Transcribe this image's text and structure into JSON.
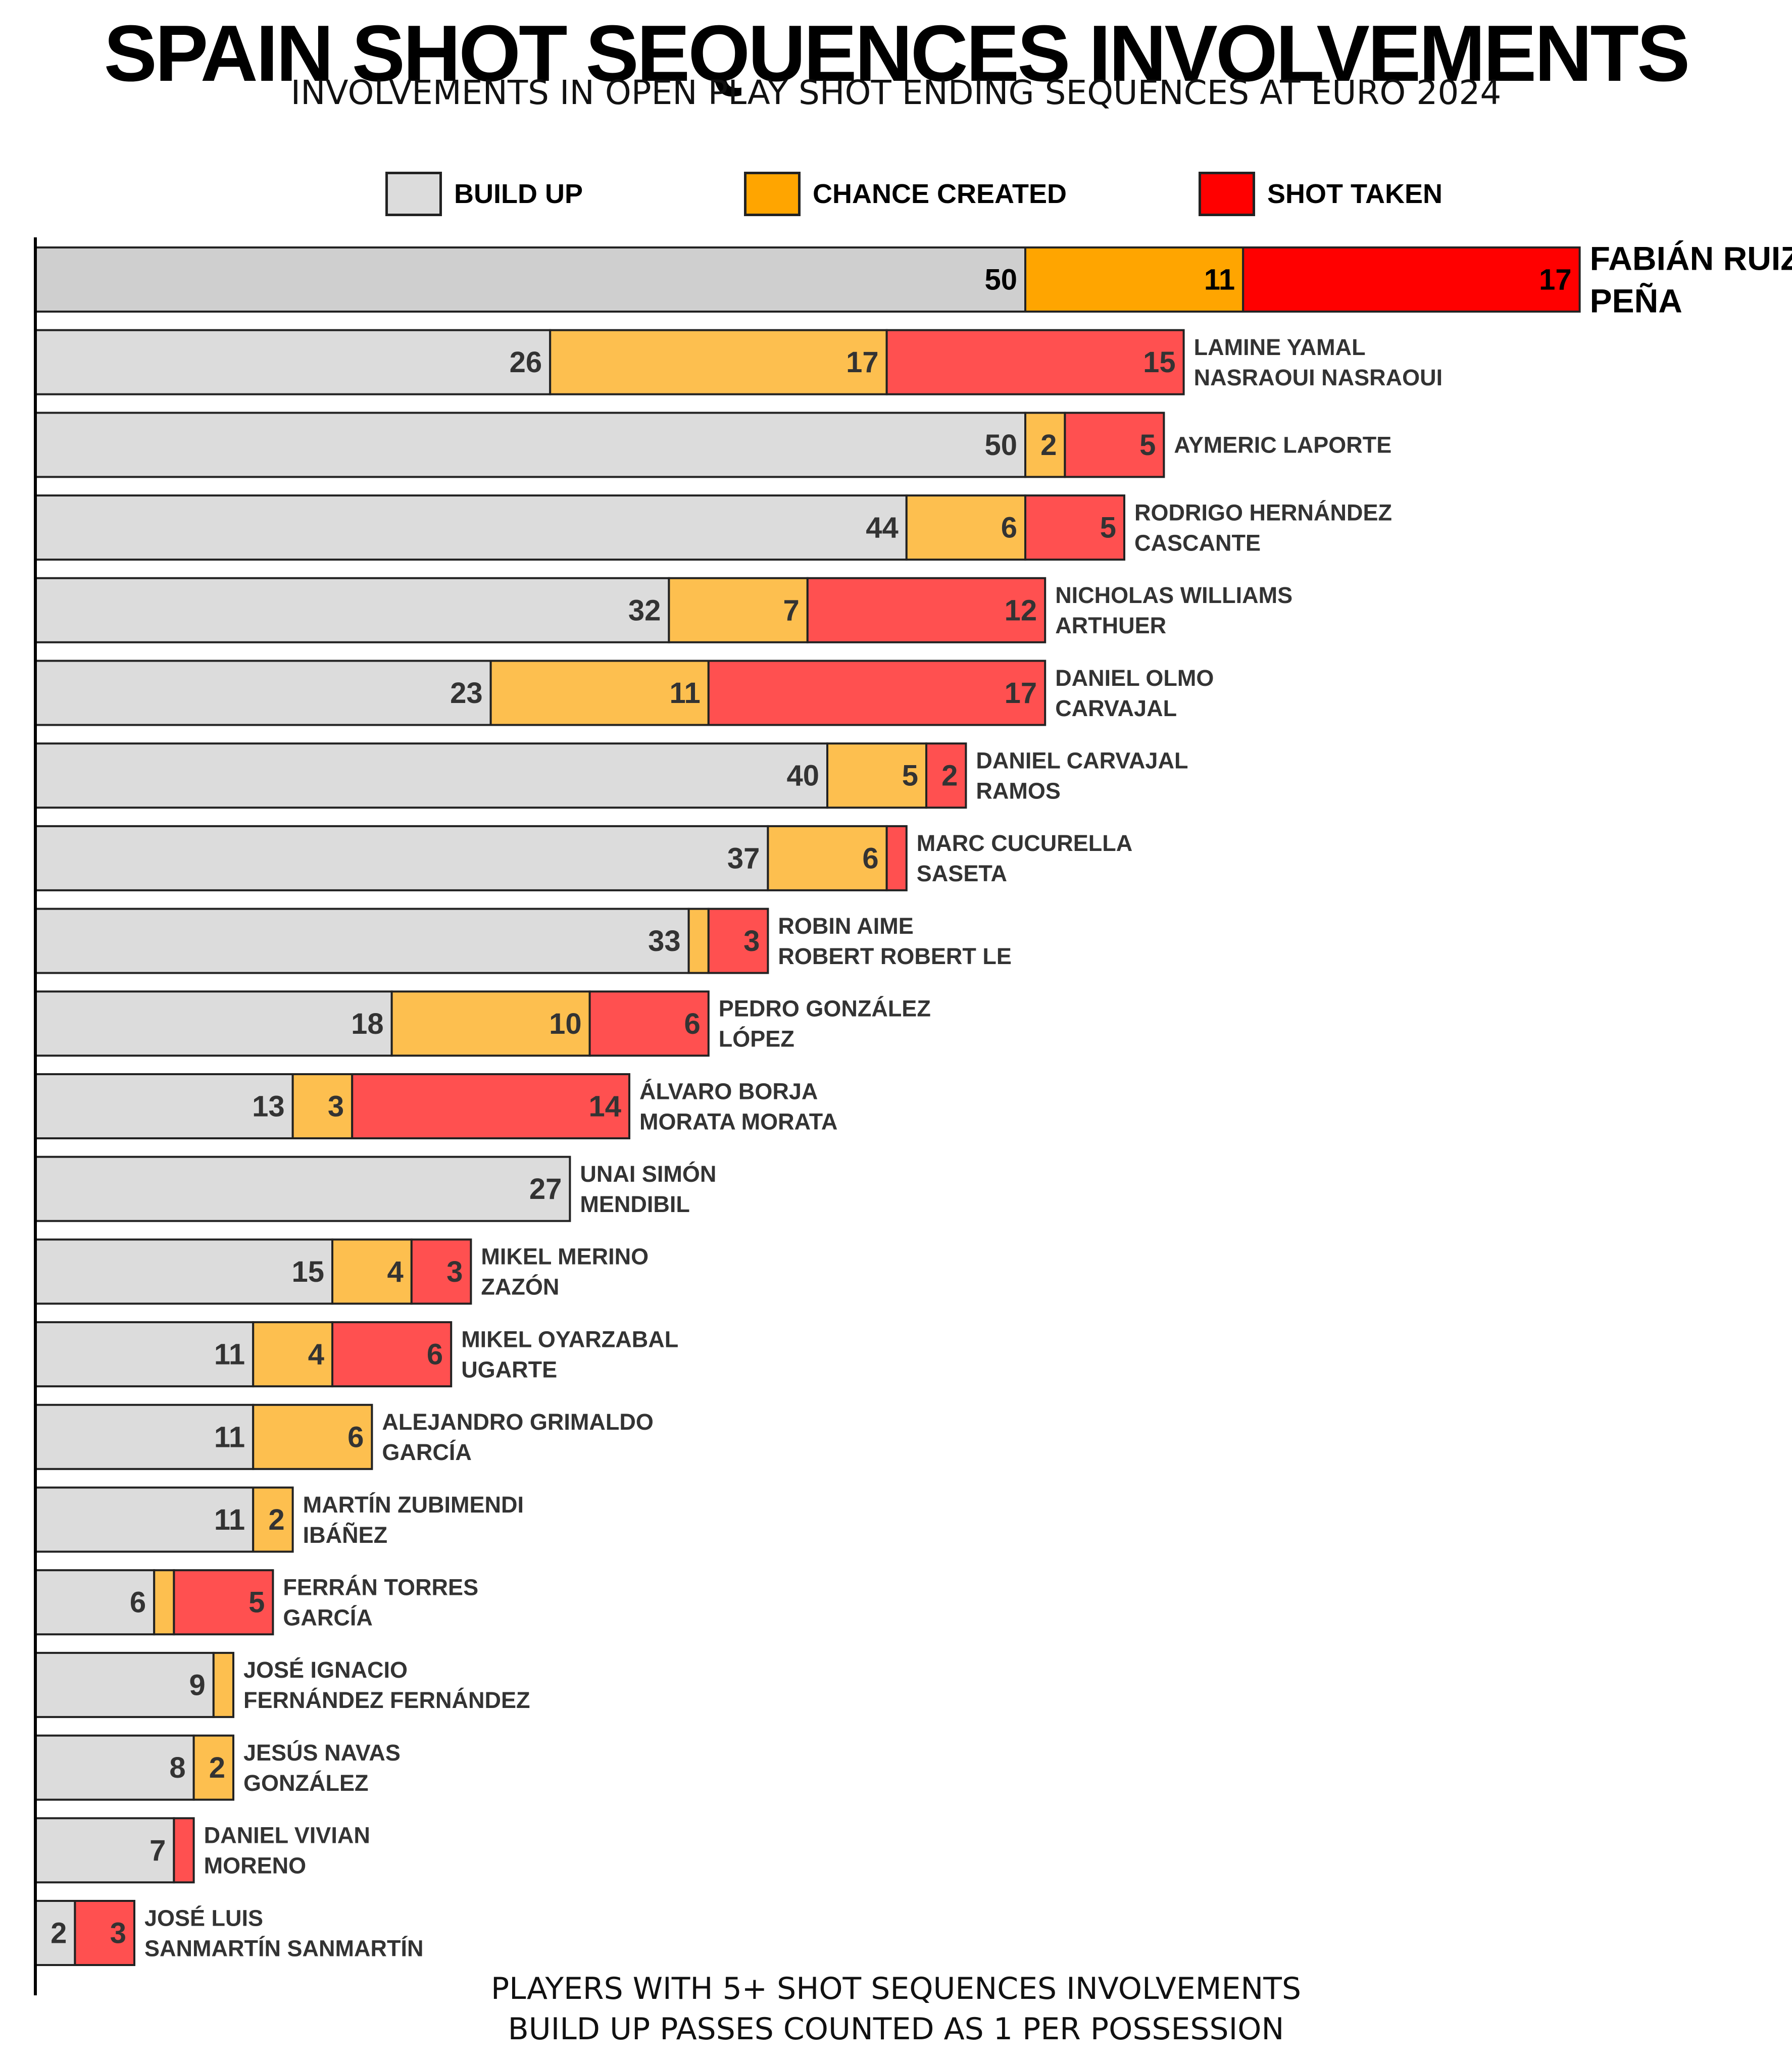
{
  "chart_data": {
    "type": "bar",
    "orientation": "horizontal",
    "stacked": true,
    "title": "SPAIN SHOT SEQUENCES INVOLVEMENTS",
    "subtitle": "INVOLVEMENTS IN OPEN PLAY SHOT ENDING SEQUENCES AT EURO 2024",
    "legend_position": "top",
    "grid": false,
    "xlim": [
      0,
      78
    ],
    "series": [
      {
        "name": "BUILD UP",
        "color": "#dcdcdc",
        "highlight_color": "#cfcfcf"
      },
      {
        "name": "CHANCE CREATED",
        "color": "#fdbf4f",
        "highlight_color": "#ffa500"
      },
      {
        "name": "SHOT TAKEN",
        "color": "#ff5050",
        "highlight_color": "#ff0000"
      }
    ],
    "rows": [
      {
        "name_line1": "FABIÁN RUIZ",
        "name_line2": "PEÑA",
        "values": [
          50,
          11,
          17
        ],
        "labels": [
          "50",
          "11",
          "17"
        ],
        "highlight": true
      },
      {
        "name_line1": "LAMINE YAMAL",
        "name_line2": "NASRAOUI NASRAOUI",
        "values": [
          26,
          17,
          15
        ],
        "labels": [
          "26",
          "17",
          "15"
        ]
      },
      {
        "name_line1": "AYMERIC LAPORTE",
        "name_line2": "",
        "values": [
          50,
          2,
          5
        ],
        "labels": [
          "50",
          "2",
          "5"
        ]
      },
      {
        "name_line1": "RODRIGO HERNÁNDEZ",
        "name_line2": "CASCANTE",
        "values": [
          44,
          6,
          5
        ],
        "labels": [
          "44",
          "6",
          "5"
        ]
      },
      {
        "name_line1": "NICHOLAS WILLIAMS",
        "name_line2": "ARTHUER",
        "values": [
          32,
          7,
          12
        ],
        "labels": [
          "32",
          "7",
          "12"
        ]
      },
      {
        "name_line1": "DANIEL OLMO",
        "name_line2": "CARVAJAL",
        "values": [
          23,
          11,
          17
        ],
        "labels": [
          "23",
          "11",
          "17"
        ]
      },
      {
        "name_line1": "DANIEL CARVAJAL",
        "name_line2": "RAMOS",
        "values": [
          40,
          5,
          2
        ],
        "labels": [
          "40",
          "5",
          "2"
        ]
      },
      {
        "name_line1": "MARC CUCURELLA",
        "name_line2": "SASETA",
        "values": [
          37,
          6,
          1
        ],
        "labels": [
          "37",
          "6",
          ""
        ]
      },
      {
        "name_line1": "ROBIN AIME",
        "name_line2": "ROBERT ROBERT LE",
        "values": [
          33,
          1,
          3
        ],
        "labels": [
          "33",
          "",
          "3"
        ]
      },
      {
        "name_line1": "PEDRO GONZÁLEZ",
        "name_line2": "LÓPEZ",
        "values": [
          18,
          10,
          6
        ],
        "labels": [
          "18",
          "10",
          "6"
        ]
      },
      {
        "name_line1": "ÁLVARO BORJA",
        "name_line2": "MORATA MORATA",
        "values": [
          13,
          3,
          14
        ],
        "labels": [
          "13",
          "3",
          "14"
        ]
      },
      {
        "name_line1": "UNAI SIMÓN",
        "name_line2": "MENDIBIL",
        "values": [
          27,
          0,
          0
        ],
        "labels": [
          "27",
          "",
          ""
        ]
      },
      {
        "name_line1": "MIKEL MERINO",
        "name_line2": "ZAZÓN",
        "values": [
          15,
          4,
          3
        ],
        "labels": [
          "15",
          "4",
          "3"
        ]
      },
      {
        "name_line1": "MIKEL OYARZABAL",
        "name_line2": "UGARTE",
        "values": [
          11,
          4,
          6
        ],
        "labels": [
          "11",
          "4",
          "6"
        ]
      },
      {
        "name_line1": "ALEJANDRO GRIMALDO",
        "name_line2": "GARCÍA",
        "values": [
          11,
          6,
          0
        ],
        "labels": [
          "11",
          "6",
          ""
        ]
      },
      {
        "name_line1": "MARTÍN ZUBIMENDI",
        "name_line2": "IBÁÑEZ",
        "values": [
          11,
          2,
          0
        ],
        "labels": [
          "11",
          "2",
          ""
        ]
      },
      {
        "name_line1": "FERRÁN TORRES",
        "name_line2": "GARCÍA",
        "values": [
          6,
          1,
          5
        ],
        "labels": [
          "6",
          "",
          "5"
        ]
      },
      {
        "name_line1": "JOSÉ IGNACIO",
        "name_line2": "FERNÁNDEZ FERNÁNDEZ",
        "values": [
          9,
          1,
          0
        ],
        "labels": [
          "9",
          "",
          ""
        ]
      },
      {
        "name_line1": "JESÚS NAVAS",
        "name_line2": "GONZÁLEZ",
        "values": [
          8,
          2,
          0
        ],
        "labels": [
          "8",
          "2",
          ""
        ]
      },
      {
        "name_line1": "DANIEL VIVIAN",
        "name_line2": "MORENO",
        "values": [
          7,
          0,
          1
        ],
        "labels": [
          "7",
          "",
          ""
        ]
      },
      {
        "name_line1": "JOSÉ LUIS",
        "name_line2": "SANMARTÍN SANMARTÍN",
        "values": [
          2,
          0,
          3
        ],
        "labels": [
          "2",
          "",
          "3"
        ]
      }
    ],
    "footnotes": [
      "PLAYERS WITH 5+ SHOT SEQUENCES INVOLVEMENTS",
      "BUILD UP PASSES COUNTED AS 1 PER POSSESSION"
    ]
  }
}
